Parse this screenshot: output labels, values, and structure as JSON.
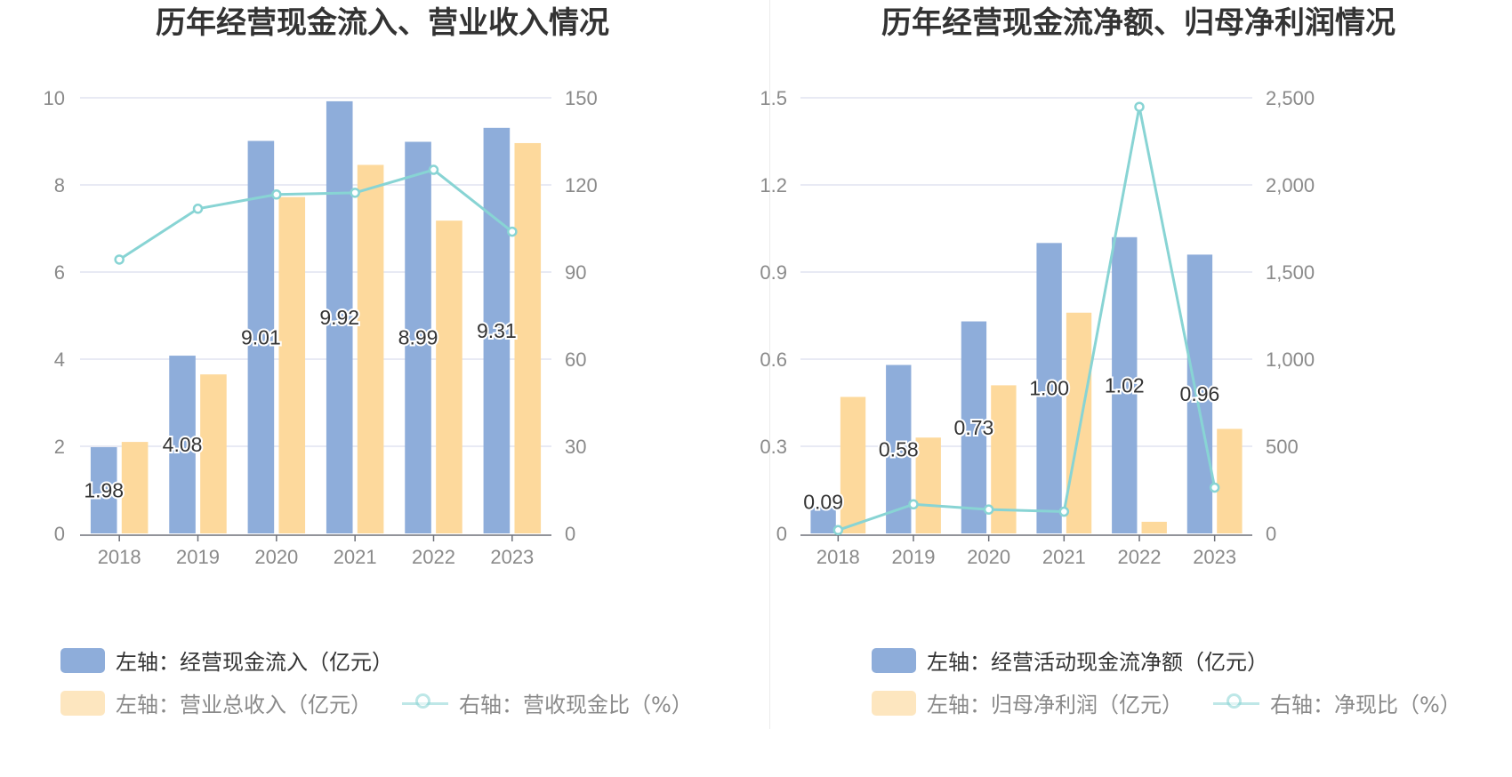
{
  "colors": {
    "bar_primary": "#8eadda",
    "bar_secondary": "#fdd99c",
    "line": "#88d4d4",
    "grid": "#e0e4f0",
    "axis_text": "#8a8a8a"
  },
  "chart_data": [
    {
      "type": "bar",
      "title": "历年经营现金流入、营业收入情况",
      "categories": [
        "2018",
        "2019",
        "2020",
        "2021",
        "2022",
        "2023"
      ],
      "y_left": {
        "min": 0,
        "max": 10,
        "ticks": [
          "0",
          "2",
          "4",
          "6",
          "8",
          "10"
        ]
      },
      "y_right": {
        "min": 0,
        "max": 150,
        "ticks": [
          "0",
          "30",
          "60",
          "90",
          "120",
          "150"
        ]
      },
      "series": [
        {
          "name": "左轴：经营现金流入（亿元）",
          "type": "bar",
          "axis": "left",
          "values": [
            1.98,
            4.08,
            9.01,
            9.92,
            8.99,
            9.31
          ],
          "labels": [
            "1.98",
            "4.08",
            "9.01",
            "9.92",
            "8.99",
            "9.31"
          ]
        },
        {
          "name": "左轴：营业总收入（亿元）",
          "type": "bar",
          "axis": "left",
          "values": [
            2.1,
            3.65,
            7.72,
            8.46,
            7.18,
            8.96
          ]
        },
        {
          "name": "右轴：营收现金比（%）",
          "type": "line",
          "axis": "right",
          "values": [
            94.3,
            111.8,
            116.7,
            117.3,
            125.2,
            103.9
          ]
        }
      ],
      "legend": {
        "placement": "bottom-left"
      }
    },
    {
      "type": "bar",
      "title": "历年经营现金流净额、归母净利润情况",
      "categories": [
        "2018",
        "2019",
        "2020",
        "2021",
        "2022",
        "2023"
      ],
      "y_left": {
        "min": 0,
        "max": 1.5,
        "ticks": [
          "0",
          "0.3",
          "0.6",
          "0.9",
          "1.2",
          "1.5"
        ]
      },
      "y_right": {
        "min": 0,
        "max": 2500,
        "ticks": [
          "0",
          "500",
          "1,000",
          "1,500",
          "2,000",
          "2,500"
        ]
      },
      "series": [
        {
          "name": "左轴：经营活动现金流净额（亿元）",
          "type": "bar",
          "axis": "left",
          "values": [
            0.09,
            0.58,
            0.73,
            1.0,
            1.02,
            0.96
          ],
          "labels": [
            "0.09",
            "0.58",
            "0.73",
            "1.00",
            "1.02",
            "0.96"
          ]
        },
        {
          "name": "左轴：归母净利润（亿元）",
          "type": "bar",
          "axis": "left",
          "values": [
            0.47,
            0.33,
            0.51,
            0.76,
            0.04,
            0.36
          ]
        },
        {
          "name": "右轴：净现比（%）",
          "type": "line",
          "axis": "right",
          "values": [
            19,
            167,
            137,
            125,
            2448,
            263
          ]
        }
      ],
      "legend": {
        "placement": "bottom-left"
      }
    }
  ]
}
